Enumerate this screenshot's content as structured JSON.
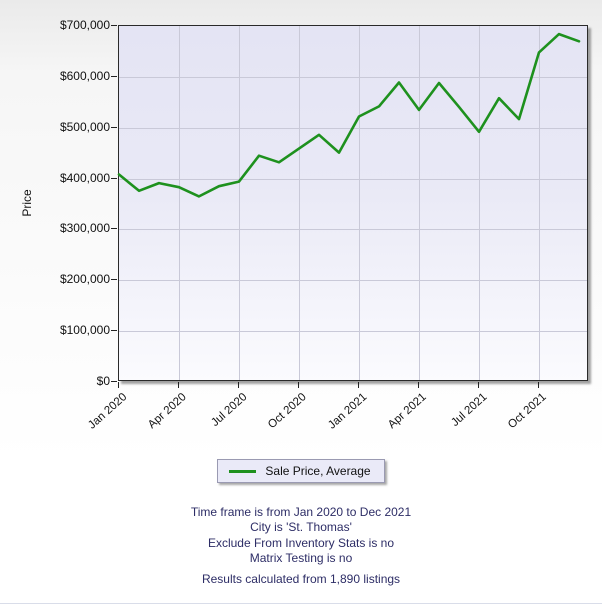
{
  "chart": {
    "y_axis_title": "Price",
    "legend_label": "Sale Price, Average"
  },
  "chart_data": {
    "type": "line",
    "title": "",
    "xlabel": "",
    "ylabel": "Price",
    "ylim": [
      0,
      700000
    ],
    "y_ticks": [
      0,
      100000,
      200000,
      300000,
      400000,
      500000,
      600000,
      700000
    ],
    "y_tick_labels": [
      "$0",
      "$100,000",
      "$200,000",
      "$300,000",
      "$400,000",
      "$500,000",
      "$600,000",
      "$700,000"
    ],
    "x": [
      "Jan 2020",
      "Feb 2020",
      "Mar 2020",
      "Apr 2020",
      "May 2020",
      "Jun 2020",
      "Jul 2020",
      "Aug 2020",
      "Sep 2020",
      "Oct 2020",
      "Nov 2020",
      "Dec 2020",
      "Jan 2021",
      "Feb 2021",
      "Mar 2021",
      "Apr 2021",
      "May 2021",
      "Jun 2021",
      "Jul 2021",
      "Aug 2021",
      "Sep 2021",
      "Oct 2021",
      "Nov 2021",
      "Dec 2021"
    ],
    "x_tick_labels_shown": [
      "Jan 2020",
      "Apr 2020",
      "Jul 2020",
      "Oct 2020",
      "Jan 2021",
      "Apr 2021",
      "Jul 2021",
      "Oct 2021"
    ],
    "x_tick_every_n_months": 3,
    "grid": true,
    "legend_position": "bottom-center",
    "series": [
      {
        "name": "Sale Price, Average",
        "color": "#1e911e",
        "values": [
          408000,
          376000,
          391000,
          383000,
          365000,
          385000,
          394000,
          445000,
          432000,
          459000,
          486000,
          451000,
          522000,
          542000,
          589000,
          535000,
          588000,
          541000,
          492000,
          558000,
          517000,
          648000,
          684000,
          670000
        ]
      }
    ]
  },
  "footer": {
    "lines": [
      "Time frame is from Jan 2020 to Dec 2021",
      "City is 'St. Thomas'",
      "Exclude From Inventory Stats is no",
      "Matrix Testing is no"
    ],
    "results_line": "Results calculated from 1,890 listings"
  },
  "colors": {
    "line": "#1e911e",
    "plot_bg_top": "#e4e4f4",
    "plot_bg_bottom": "#fbfbfe",
    "gridline": "#c9c9d8",
    "footer_text": "#2d2d66"
  }
}
